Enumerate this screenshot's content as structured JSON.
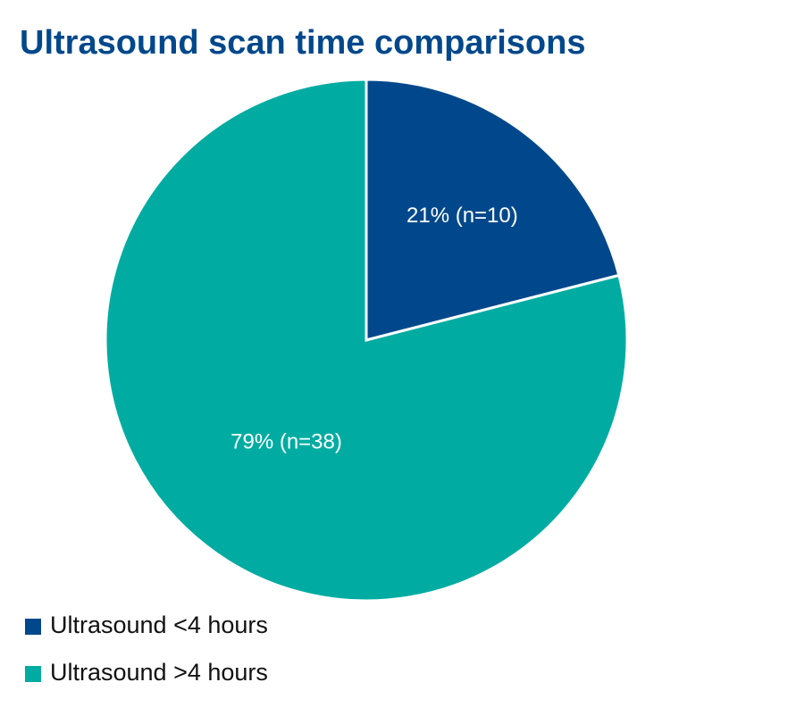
{
  "chart_data": {
    "type": "pie",
    "title": "Ultrasound scan time comparisons",
    "categories": [
      "Ultrasound <4 hours",
      "Ultrasound >4 hours"
    ],
    "values": [
      21,
      79
    ],
    "value_labels": [
      "21% (n=10)",
      "79% (n=38)"
    ],
    "colors": [
      "#00488b",
      "#00aca1"
    ],
    "legend": "bottom-left"
  }
}
